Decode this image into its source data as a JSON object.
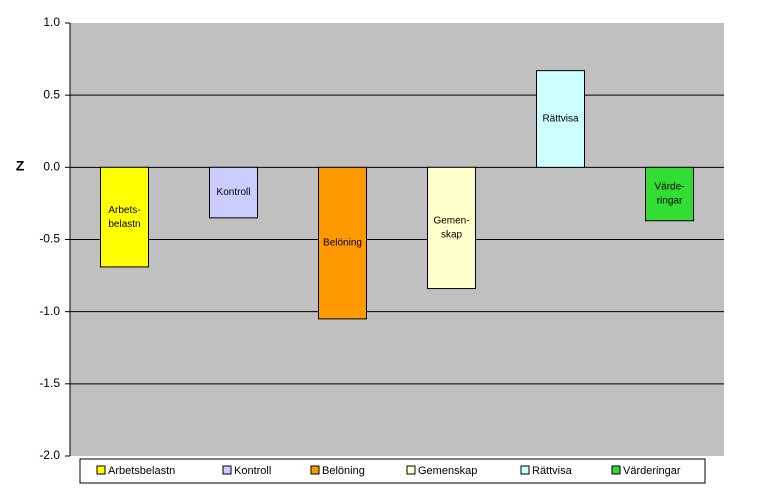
{
  "chart_data": {
    "type": "bar",
    "y_label": "Z",
    "categories": [
      "Arbetsbelastn",
      "Kontroll",
      "Belöning",
      "Gemenskap",
      "Rättvisa",
      "Värderingar"
    ],
    "values": [
      -0.69,
      -0.35,
      -1.05,
      -0.84,
      0.67,
      -0.37
    ],
    "colors": [
      "#ffff00",
      "#ccccff",
      "#ff9900",
      "#ffffcc",
      "#ccffff",
      "#33dd33"
    ],
    "bar_labels": [
      [
        "Arbets-",
        "belastn"
      ],
      [
        "Kontroll"
      ],
      [
        "Belöning"
      ],
      [
        "Gemen-",
        "skap"
      ],
      [
        "Rättvisa"
      ],
      [
        "Värde-",
        "ringar"
      ]
    ],
    "ylim": [
      -2.0,
      1.0
    ],
    "yticks": [
      {
        "value": 1.0,
        "label": "1.0"
      },
      0.5,
      {
        "value": 0.0,
        "label": "0.0"
      },
      -0.5,
      {
        "value": -1.0,
        "label": "-1.0"
      },
      -1.5,
      {
        "value": -2.0,
        "label": "-2.0"
      }
    ],
    "grid": true,
    "legend": "bottom"
  }
}
